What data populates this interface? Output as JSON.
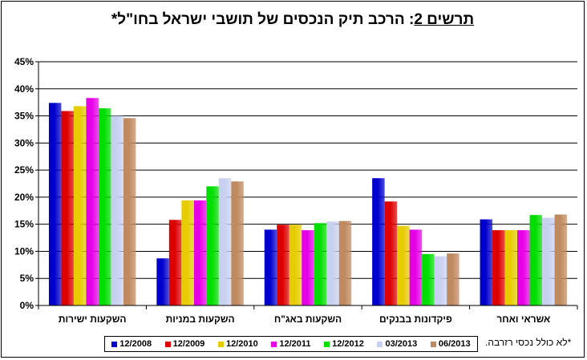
{
  "title": {
    "prefix": "תרשים 2",
    "rest": ": הרכב תיק הנכסים של תושבי ישראל בחו\"ל*"
  },
  "footnote": "*לא כולל נכסי רזרבה.",
  "chart_data": {
    "type": "bar",
    "categories": [
      "השקעות ישירות",
      "השקעות במניות",
      "השקעות באג\"ח",
      "פיקדונות בבנקים",
      "אשראי ואחר"
    ],
    "series": [
      {
        "name": "12/2008",
        "color": "#0000cc",
        "values": [
          37.4,
          8.7,
          14.0,
          23.5,
          15.9
        ]
      },
      {
        "name": "12/2009",
        "color": "#dd0000",
        "values": [
          35.9,
          15.8,
          14.9,
          19.2,
          13.9
        ]
      },
      {
        "name": "12/2010",
        "color": "#e6cc00",
        "values": [
          36.8,
          19.4,
          14.9,
          14.7,
          13.9
        ]
      },
      {
        "name": "12/2011",
        "color": "#e600e6",
        "values": [
          38.3,
          19.4,
          13.9,
          14.0,
          13.9
        ]
      },
      {
        "name": "12/2012",
        "color": "#00dd00",
        "values": [
          36.4,
          22.0,
          15.2,
          9.5,
          16.7
        ]
      },
      {
        "name": "03/2013",
        "color": "#c8d0f0",
        "values": [
          35.0,
          23.5,
          15.5,
          9.1,
          16.2
        ]
      },
      {
        "name": "06/2013",
        "color": "#c08a60",
        "values": [
          34.6,
          22.9,
          15.6,
          9.6,
          16.8
        ]
      }
    ],
    "ylim": [
      0,
      45
    ],
    "yticks": [
      "0%",
      "5%",
      "10%",
      "15%",
      "20%",
      "25%",
      "30%",
      "35%",
      "40%",
      "45%"
    ],
    "grid": true,
    "legend_position": "bottom"
  }
}
